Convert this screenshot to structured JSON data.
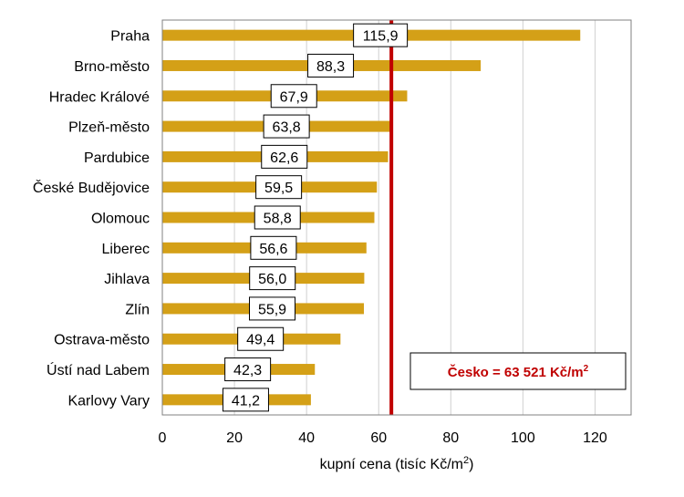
{
  "chart_data": {
    "type": "bar",
    "orientation": "horizontal",
    "categories": [
      "Praha",
      "Brno-město",
      "Hradec Králové",
      "Plzeň-město",
      "Pardubice",
      "České Budějovice",
      "Olomouc",
      "Liberec",
      "Jihlava",
      "Zlín",
      "Ostrava-město",
      "Ústí nad Labem",
      "Karlovy Vary"
    ],
    "values": [
      115.9,
      88.3,
      67.9,
      63.8,
      62.6,
      59.5,
      58.8,
      56.6,
      56.0,
      55.9,
      49.4,
      42.3,
      41.2
    ],
    "data_labels": [
      "115,9",
      "88,3",
      "67,9",
      "63,8",
      "62,6",
      "59,5",
      "58,8",
      "56,6",
      "56,0",
      "55,9",
      "49,4",
      "42,3",
      "41,2"
    ],
    "xlim": [
      0,
      130
    ],
    "xticks": [
      0,
      20,
      40,
      60,
      80,
      100,
      120
    ],
    "xlabel_main": "kupní cena (tisíc Kč/m",
    "xlabel_sup": "2",
    "xlabel_close": ")",
    "grid": "vertical",
    "bar_color": "#D4A017",
    "reference_line": {
      "value": 63.521,
      "color": "#C00000",
      "label_main": "Česko =  63 521 Kč/m",
      "label_sup": "2"
    }
  }
}
